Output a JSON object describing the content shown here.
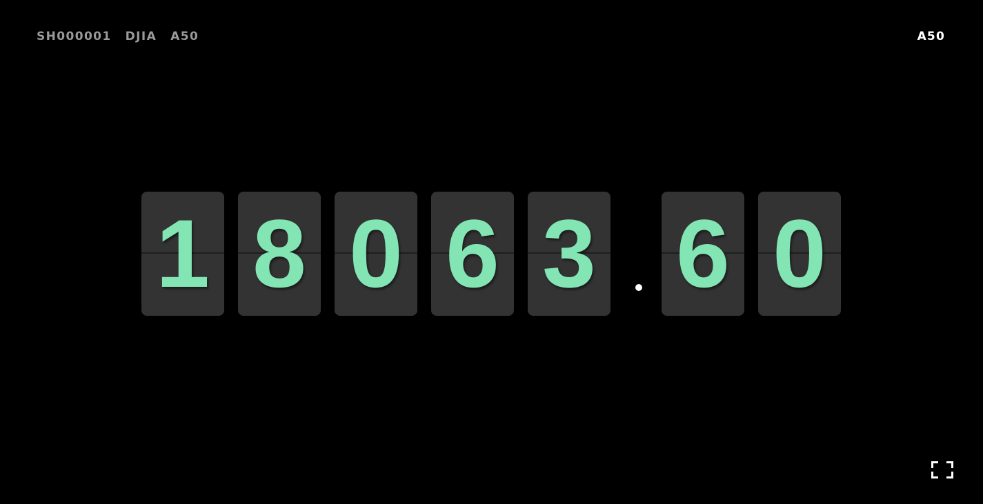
{
  "nav": {
    "items": [
      {
        "label": "SH000001"
      },
      {
        "label": "DJIA"
      },
      {
        "label": "A50"
      }
    ]
  },
  "current_symbol": "A50",
  "ticker": {
    "value": "18063.60",
    "integer_digits": [
      "1",
      "8",
      "0",
      "6",
      "3"
    ],
    "decimal_point": ".",
    "fraction_digits": [
      "6",
      "0"
    ]
  },
  "colors": {
    "background": "#000000",
    "card": "#333333",
    "digit": "#82e5b3",
    "nav_text": "#9a9a9a",
    "active_text": "#ffffff"
  },
  "icons": {
    "fullscreen": "fullscreen-icon"
  }
}
